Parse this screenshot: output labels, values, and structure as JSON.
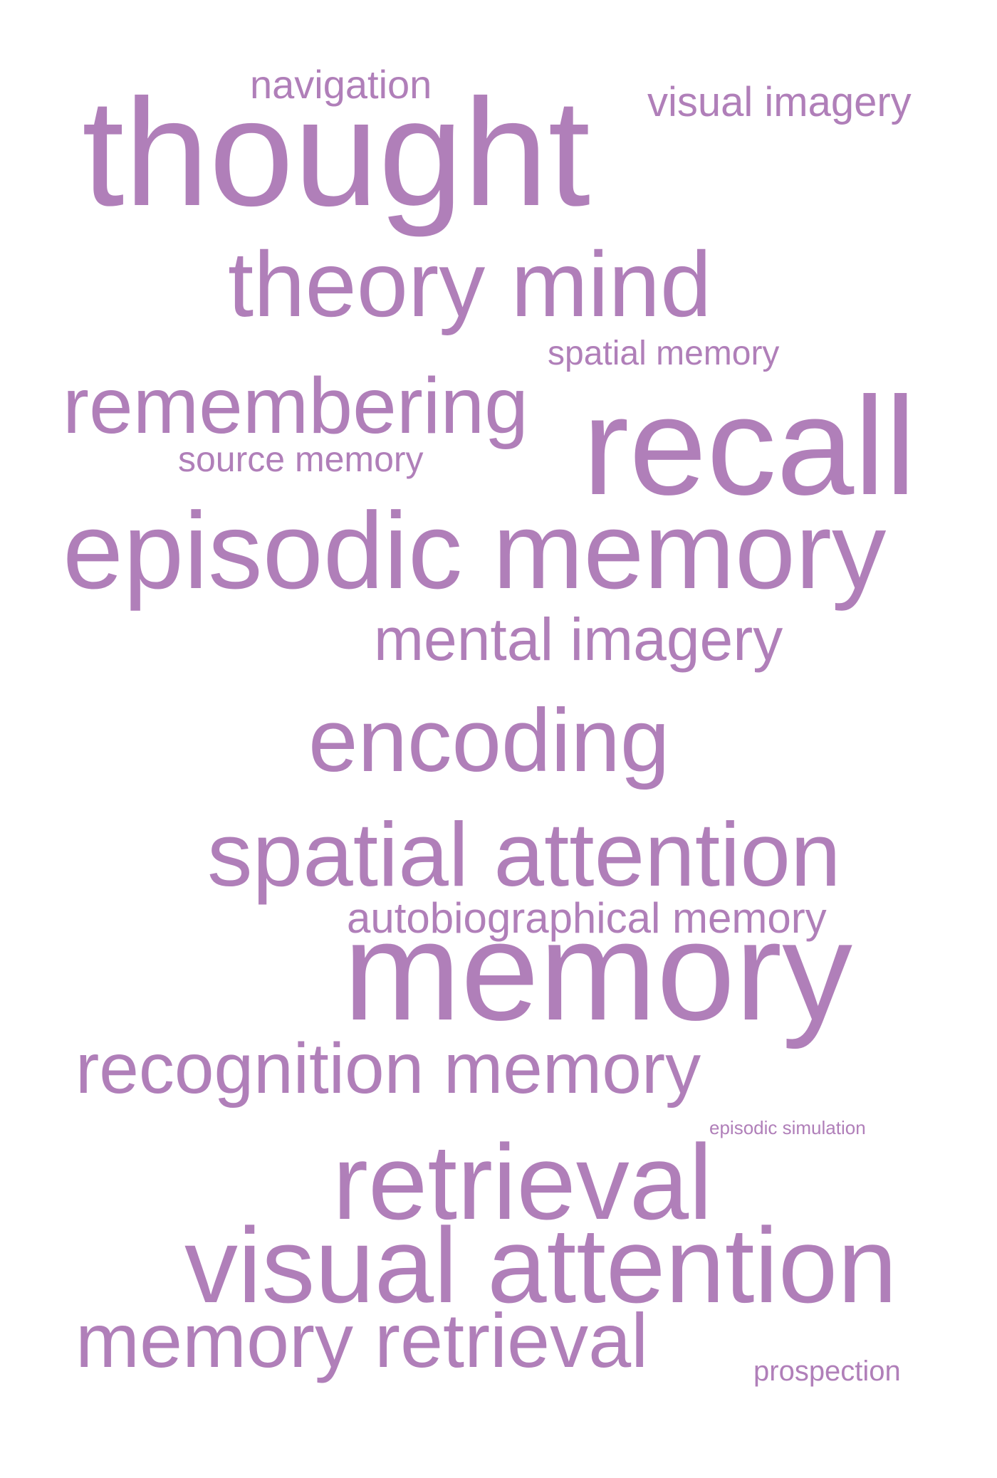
{
  "word_color": "#b07fb9",
  "words": [
    {
      "id": "thought",
      "text": "thought"
    },
    {
      "id": "navigation",
      "text": "navigation"
    },
    {
      "id": "visual-imagery",
      "text": "visual imagery"
    },
    {
      "id": "theory-mind",
      "text": "theory mind"
    },
    {
      "id": "spatial-memory",
      "text": "spatial memory"
    },
    {
      "id": "remembering",
      "text": "remembering"
    },
    {
      "id": "source-memory",
      "text": "source memory"
    },
    {
      "id": "recall",
      "text": "recall"
    },
    {
      "id": "episodic-memory",
      "text": "episodic memory"
    },
    {
      "id": "mental-imagery",
      "text": "mental imagery"
    },
    {
      "id": "encoding",
      "text": "encoding"
    },
    {
      "id": "spatial-attention",
      "text": "spatial attention"
    },
    {
      "id": "autobiographical-memory",
      "text": "autobiographical memory"
    },
    {
      "id": "memory",
      "text": "memory"
    },
    {
      "id": "recognition-memory",
      "text": "recognition memory"
    },
    {
      "id": "episodic-simulation",
      "text": "episodic simulation"
    },
    {
      "id": "retrieval",
      "text": "retrieval"
    },
    {
      "id": "visual-attention",
      "text": "visual attention"
    },
    {
      "id": "memory-retrieval",
      "text": "memory retrieval"
    },
    {
      "id": "prospection",
      "text": "prospection"
    }
  ]
}
